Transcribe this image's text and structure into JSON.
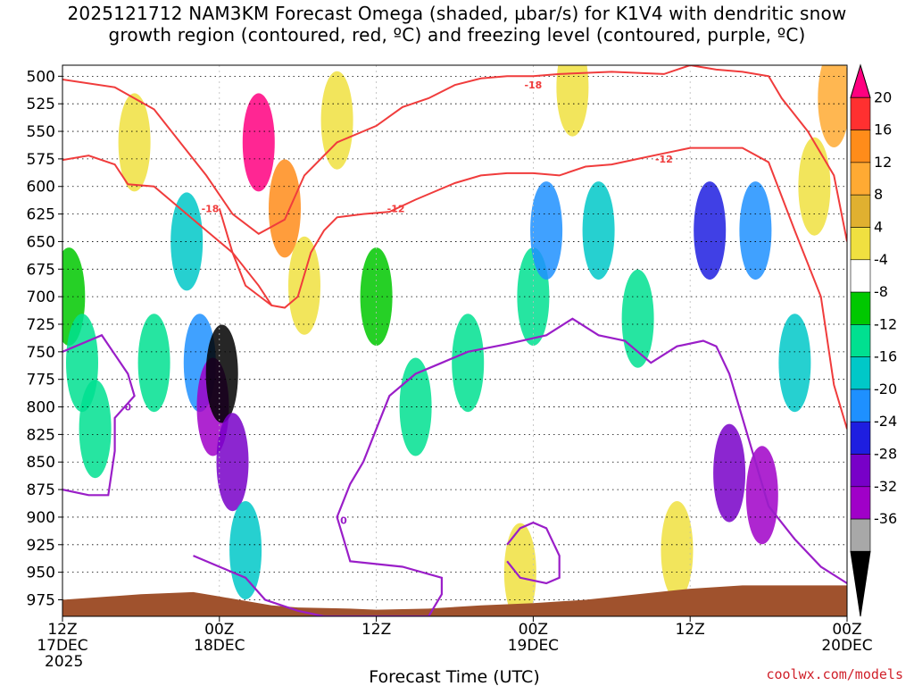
{
  "title_line1": "2025121712 NAM3KM Forecast Omega (shaded, µbar/s) for K1V4 with dendritic snow",
  "title_line2": "growth region (contoured, red, ºC) and freezing level (contoured, purple, ºC)",
  "credit": "coolwx.com/models",
  "chart_data": {
    "type": "heatmap",
    "title": "2025121712 NAM3KM Forecast Omega (shaded, µbar/s) for K1V4 with dendritic snow growth region (contoured, red, ºC) and freezing level (contoured, purple, ºC)",
    "xlabel": "Forecast Time (UTC)",
    "ylabel": "",
    "xlim": [
      0,
      60
    ],
    "ylim": [
      990,
      490
    ],
    "x_ticks": [
      {
        "hour": 0,
        "lines": [
          "12Z",
          "17DEC",
          "2025"
        ]
      },
      {
        "hour": 12,
        "lines": [
          "00Z",
          "18DEC"
        ]
      },
      {
        "hour": 24,
        "lines": [
          "12Z"
        ]
      },
      {
        "hour": 36,
        "lines": [
          "00Z",
          "19DEC"
        ]
      },
      {
        "hour": 48,
        "lines": [
          "12Z"
        ]
      },
      {
        "hour": 60,
        "lines": [
          "00Z",
          "20DEC"
        ]
      }
    ],
    "y_ticks": [
      "500",
      "525",
      "550",
      "575",
      "600",
      "625",
      "650",
      "675",
      "700",
      "725",
      "750",
      "775",
      "800",
      "825",
      "850",
      "875",
      "900",
      "925",
      "950",
      "975"
    ],
    "colorbar": {
      "label_values": [
        "20",
        "16",
        "12",
        "8",
        "4",
        "-4",
        "-8",
        "-12",
        "-16",
        "-20",
        "-24",
        "-28",
        "-32",
        "-36"
      ],
      "colors": [
        "#ff0080",
        "#ff3030",
        "#ff8c1a",
        "#ffaa33",
        "#e0b030",
        "#f0e040",
        "#ffffff",
        "#00c800",
        "#00e090",
        "#00c8c8",
        "#1e90ff",
        "#1e1ee0",
        "#7800c8",
        "#a000c8",
        "#a8a8a8",
        "#000000"
      ]
    },
    "omega_cells": [
      {
        "t": 0.5,
        "p": 700,
        "v": -5
      },
      {
        "t": 1.5,
        "p": 760,
        "v": -8
      },
      {
        "t": 2.5,
        "p": 820,
        "v": -10
      },
      {
        "t": 5.5,
        "p": 560,
        "v": 5
      },
      {
        "t": 7,
        "p": 760,
        "v": -8
      },
      {
        "t": 9.5,
        "p": 650,
        "v": -12
      },
      {
        "t": 10.5,
        "p": 760,
        "v": -18
      },
      {
        "t": 11.5,
        "p": 800,
        "v": -30
      },
      {
        "t": 12.2,
        "p": 770,
        "v": -40
      },
      {
        "t": 13,
        "p": 850,
        "v": -26
      },
      {
        "t": 14,
        "p": 930,
        "v": -14
      },
      {
        "t": 15,
        "p": 560,
        "v": 22
      },
      {
        "t": 17,
        "p": 620,
        "v": 15
      },
      {
        "t": 18.5,
        "p": 690,
        "v": 6
      },
      {
        "t": 21,
        "p": 540,
        "v": 5
      },
      {
        "t": 24,
        "p": 700,
        "v": -6
      },
      {
        "t": 27,
        "p": 800,
        "v": -8
      },
      {
        "t": 31,
        "p": 760,
        "v": -8
      },
      {
        "t": 35,
        "p": 950,
        "v": 5
      },
      {
        "t": 36,
        "p": 700,
        "v": -10
      },
      {
        "t": 37,
        "p": 640,
        "v": -18
      },
      {
        "t": 39,
        "p": 510,
        "v": 5
      },
      {
        "t": 41,
        "p": 640,
        "v": -14
      },
      {
        "t": 44,
        "p": 720,
        "v": -10
      },
      {
        "t": 47,
        "p": 930,
        "v": 5
      },
      {
        "t": 49.5,
        "p": 640,
        "v": -22
      },
      {
        "t": 51,
        "p": 860,
        "v": -26
      },
      {
        "t": 53,
        "p": 640,
        "v": -16
      },
      {
        "t": 53.5,
        "p": 880,
        "v": -30
      },
      {
        "t": 56,
        "p": 760,
        "v": -12
      },
      {
        "t": 57.5,
        "p": 600,
        "v": 6
      },
      {
        "t": 59,
        "p": 520,
        "v": 10
      }
    ],
    "red_contours": [
      {
        "label": "-18",
        "points": [
          [
            0,
            503
          ],
          [
            4,
            510
          ],
          [
            7,
            530
          ],
          [
            9,
            560
          ],
          [
            11,
            590
          ],
          [
            13,
            625
          ],
          [
            15,
            643
          ],
          [
            17,
            630
          ],
          [
            18.5,
            590
          ],
          [
            21,
            560
          ],
          [
            24,
            545
          ],
          [
            26,
            528
          ],
          [
            28,
            520
          ],
          [
            30,
            508
          ],
          [
            32,
            502
          ],
          [
            34,
            500
          ],
          [
            36,
            500
          ],
          [
            38,
            498
          ],
          [
            40,
            497
          ],
          [
            42,
            496
          ],
          [
            44,
            497
          ],
          [
            46,
            498
          ],
          [
            48,
            490
          ],
          [
            50,
            494
          ],
          [
            52,
            496
          ],
          [
            54,
            500
          ],
          [
            55,
            520
          ],
          [
            57,
            550
          ],
          [
            59,
            590
          ],
          [
            60,
            650
          ]
        ]
      },
      {
        "label": "-12",
        "points": [
          [
            0,
            576
          ],
          [
            2,
            572
          ],
          [
            4,
            580
          ],
          [
            5,
            598
          ],
          [
            7,
            600
          ],
          [
            9,
            620
          ],
          [
            11,
            640
          ],
          [
            13,
            660
          ],
          [
            15,
            690
          ],
          [
            16,
            708
          ],
          [
            17,
            710
          ],
          [
            18,
            700
          ],
          [
            19,
            660
          ],
          [
            20,
            640
          ],
          [
            21,
            628
          ],
          [
            23,
            625
          ],
          [
            25,
            623
          ],
          [
            27,
            612
          ],
          [
            30,
            597
          ],
          [
            32,
            590
          ],
          [
            34,
            588
          ],
          [
            36,
            588
          ],
          [
            38,
            590
          ],
          [
            40,
            582
          ],
          [
            42,
            580
          ],
          [
            44,
            575
          ],
          [
            46,
            570
          ],
          [
            48,
            565
          ],
          [
            50,
            565
          ],
          [
            52,
            565
          ],
          [
            54,
            578
          ],
          [
            56,
            640
          ],
          [
            58,
            700
          ],
          [
            59,
            780
          ],
          [
            60,
            820
          ]
        ]
      },
      {
        "label": "",
        "points": [
          [
            12,
            620
          ],
          [
            13,
            660
          ],
          [
            14,
            690
          ],
          [
            16,
            708
          ]
        ]
      }
    ],
    "red_labels": [
      {
        "text": "-18",
        "t": 36,
        "p": 508
      },
      {
        "text": "-18",
        "t": 11.3,
        "p": 620
      },
      {
        "text": "-12",
        "t": 25.5,
        "p": 620
      },
      {
        "text": "-12",
        "t": 46,
        "p": 575
      }
    ],
    "purple_contours": [
      {
        "label": "0",
        "points": [
          [
            0,
            750
          ],
          [
            3,
            735
          ],
          [
            5,
            770
          ],
          [
            5.5,
            790
          ],
          [
            4,
            810
          ],
          [
            4,
            840
          ],
          [
            3.5,
            880
          ],
          [
            2,
            880
          ],
          [
            0,
            875
          ]
        ]
      },
      {
        "label": "0",
        "points": [
          [
            10,
            935
          ],
          [
            12,
            945
          ],
          [
            14,
            955
          ],
          [
            15.5,
            975
          ],
          [
            18,
            985
          ],
          [
            20,
            990
          ],
          [
            24,
            990
          ],
          [
            28,
            990
          ],
          [
            29,
            970
          ],
          [
            29,
            955
          ],
          [
            26,
            945
          ],
          [
            22,
            940
          ],
          [
            21.5,
            920
          ],
          [
            21,
            900
          ],
          [
            22,
            870
          ],
          [
            23,
            850
          ],
          [
            24,
            820
          ],
          [
            25,
            790
          ],
          [
            27,
            770
          ],
          [
            29,
            760
          ],
          [
            31,
            750
          ],
          [
            34,
            743
          ],
          [
            37,
            735
          ],
          [
            39,
            720
          ],
          [
            41,
            735
          ],
          [
            43,
            740
          ],
          [
            45,
            760
          ],
          [
            47,
            745
          ],
          [
            49,
            740
          ],
          [
            50,
            745
          ],
          [
            51,
            770
          ],
          [
            52,
            810
          ],
          [
            53,
            850
          ],
          [
            54,
            890
          ],
          [
            56,
            920
          ],
          [
            58,
            945
          ],
          [
            60,
            960
          ]
        ]
      },
      {
        "label": "",
        "points": [
          [
            34,
            925
          ],
          [
            35,
            910
          ],
          [
            36,
            905
          ],
          [
            37,
            910
          ],
          [
            38,
            935
          ],
          [
            38,
            955
          ],
          [
            37,
            960
          ],
          [
            35,
            955
          ],
          [
            34,
            940
          ]
        ]
      }
    ],
    "purple_labels": [
      {
        "text": "0",
        "t": 5,
        "p": 800
      },
      {
        "text": "0",
        "t": 21.5,
        "p": 903
      }
    ],
    "terrain": {
      "color": "#a0522d",
      "points": [
        [
          0,
          975
        ],
        [
          6,
          970
        ],
        [
          10,
          968
        ],
        [
          12,
          972
        ],
        [
          14,
          976
        ],
        [
          16,
          980
        ],
        [
          18,
          982
        ],
        [
          22,
          983
        ],
        [
          24,
          984
        ],
        [
          28,
          983
        ],
        [
          32,
          980
        ],
        [
          36,
          978
        ],
        [
          40,
          975
        ],
        [
          44,
          970
        ],
        [
          48,
          965
        ],
        [
          52,
          962
        ],
        [
          56,
          962
        ],
        [
          60,
          962
        ]
      ]
    }
  }
}
